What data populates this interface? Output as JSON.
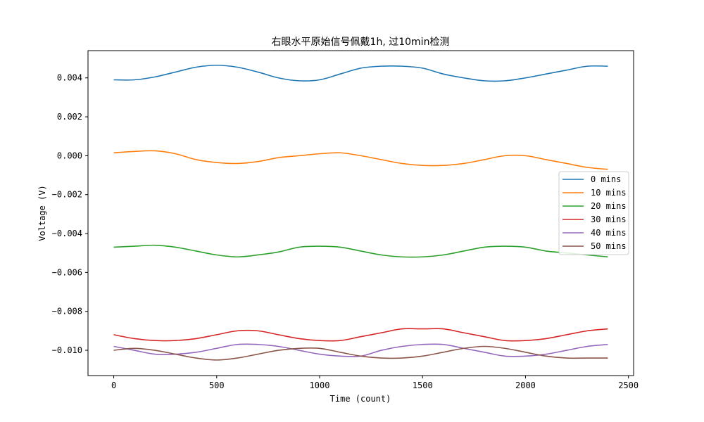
{
  "chart_data": {
    "type": "line",
    "title": "右眼水平原始信号佩戴1h, 过10min检测",
    "xlabel": "Time (count)",
    "ylabel": "Voltage (V)",
    "xlim": [
      -125,
      2525
    ],
    "ylim": [
      -0.0113,
      0.0054
    ],
    "xticks": [
      0,
      500,
      1000,
      1500,
      2000,
      2500
    ],
    "xtick_labels": [
      "0",
      "500",
      "1000",
      "1500",
      "2000",
      "2500"
    ],
    "yticks": [
      0.004,
      0.002,
      0.0,
      -0.002,
      -0.004,
      -0.006,
      -0.008,
      -0.01
    ],
    "ytick_labels": [
      "0.004",
      "0.002",
      "0.000",
      "−0.002",
      "−0.004",
      "−0.006",
      "−0.008",
      "−0.010"
    ],
    "grid": false,
    "legend_position": "center-right",
    "x": [
      0,
      100,
      200,
      300,
      400,
      500,
      600,
      700,
      800,
      900,
      1000,
      1100,
      1200,
      1300,
      1400,
      1500,
      1600,
      1700,
      1800,
      1900,
      2000,
      2100,
      2200,
      2300,
      2400
    ],
    "series": [
      {
        "name": "0 mins",
        "color": "#1f77b4",
        "values": [
          0.0039,
          0.0039,
          0.00405,
          0.0043,
          0.00455,
          0.00465,
          0.00455,
          0.0043,
          0.004,
          0.00385,
          0.0039,
          0.0042,
          0.0045,
          0.0046,
          0.0046,
          0.0045,
          0.0042,
          0.004,
          0.00385,
          0.00385,
          0.004,
          0.0042,
          0.0044,
          0.0046,
          0.0046
        ]
      },
      {
        "name": "10 mins",
        "color": "#ff7f0e",
        "values": [
          0.00015,
          0.00022,
          0.00025,
          0.0001,
          -0.0002,
          -0.00035,
          -0.0004,
          -0.0003,
          -0.0001,
          0.0,
          0.0001,
          0.00015,
          0.0,
          -0.0002,
          -0.0004,
          -0.0005,
          -0.0005,
          -0.0004,
          -0.0002,
          0.0,
          0.0,
          -0.0002,
          -0.0004,
          -0.0006,
          -0.0007
        ]
      },
      {
        "name": "20 mins",
        "color": "#2ca02c",
        "values": [
          -0.0047,
          -0.00465,
          -0.0046,
          -0.0047,
          -0.0049,
          -0.0051,
          -0.0052,
          -0.0051,
          -0.00495,
          -0.0047,
          -0.00465,
          -0.0047,
          -0.0049,
          -0.0051,
          -0.0052,
          -0.0052,
          -0.0051,
          -0.0049,
          -0.0047,
          -0.00465,
          -0.0047,
          -0.0049,
          -0.005,
          -0.0051,
          -0.0052
        ]
      },
      {
        "name": "30 mins",
        "color": "#d62728",
        "values": [
          -0.0092,
          -0.0094,
          -0.0095,
          -0.0095,
          -0.0094,
          -0.0092,
          -0.009,
          -0.009,
          -0.0092,
          -0.0094,
          -0.0095,
          -0.0095,
          -0.0093,
          -0.0091,
          -0.0089,
          -0.0089,
          -0.0089,
          -0.0091,
          -0.0093,
          -0.0095,
          -0.0095,
          -0.0094,
          -0.0092,
          -0.009,
          -0.0089
        ]
      },
      {
        "name": "40 mins",
        "color": "#9467bd",
        "values": [
          -0.0098,
          -0.01,
          -0.0102,
          -0.0102,
          -0.0101,
          -0.0099,
          -0.0097,
          -0.0097,
          -0.0098,
          -0.01,
          -0.0102,
          -0.0103,
          -0.0103,
          -0.01,
          -0.0098,
          -0.0097,
          -0.0097,
          -0.0099,
          -0.0101,
          -0.0103,
          -0.0103,
          -0.0102,
          -0.01,
          -0.0098,
          -0.0097
        ]
      },
      {
        "name": "50 mins",
        "color": "#8c564b",
        "values": [
          -0.01,
          -0.0099,
          -0.01,
          -0.0102,
          -0.0104,
          -0.0105,
          -0.0104,
          -0.0102,
          -0.01,
          -0.0099,
          -0.0099,
          -0.0101,
          -0.0103,
          -0.0104,
          -0.0104,
          -0.0103,
          -0.0101,
          -0.0099,
          -0.0098,
          -0.0099,
          -0.0101,
          -0.0103,
          -0.0104,
          -0.0104,
          -0.0104
        ]
      }
    ]
  }
}
